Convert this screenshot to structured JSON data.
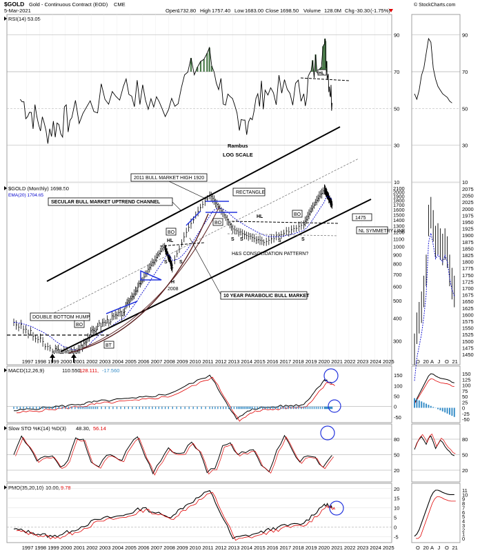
{
  "header": {
    "symbol": "$GOLD",
    "name": "Gold - Continuous Contract (EOD)",
    "exchange": "CME",
    "date": "5-Mar-2021",
    "open_label": "Open",
    "open": "1732.80",
    "high_label": "High",
    "high": "1757.40",
    "low_label": "Low",
    "low": "1683.00",
    "close_label": "Close",
    "close": "1698.50",
    "volume_label": "Volume",
    "volume": "128.0M",
    "chg_label": "Chg",
    "chg": "-30.30",
    "chg_pct": "(-1.75%)",
    "brand": "© StockCharts.com"
  },
  "colors": {
    "price": "#000000",
    "ema": "#0000cc",
    "signal": "#e00000",
    "histogram": "#3a8fc8",
    "rsi_fill": "#4a7a4a",
    "annotation_blue": "#2233dd",
    "guide_gray": "#aaaaaa"
  },
  "panels": {
    "rsi": {
      "legend": "RSI(14) 53.05",
      "ticks": [
        "90",
        "70",
        "50",
        "30",
        "10"
      ]
    },
    "price": {
      "legend_name": "$GOLD (Monthly) 1698.50",
      "legend_ema": "EMA(20) 1704.65",
      "ticks": [
        "2100",
        "2000",
        "1900",
        "1800",
        "1700",
        "1600",
        "1500",
        "1400",
        "1300",
        "1200",
        "1100",
        "1000",
        "900",
        "800",
        "700",
        "600",
        "500",
        "400",
        "300"
      ],
      "inset_ticks": [
        "2075",
        "2050",
        "2025",
        "2000",
        "1975",
        "1950",
        "1925",
        "1900",
        "1875",
        "1850",
        "1825",
        "1800",
        "1775",
        "1750",
        "1725",
        "1700",
        "1675",
        "1650",
        "1625",
        "1600",
        "1575",
        "1550",
        "1525",
        "1500",
        "1475",
        "1450"
      ]
    },
    "macd": {
      "legend_name": "MACD(12,26,9)",
      "legend_v1": "110.550,",
      "legend_v2": "128.111,",
      "legend_v3": "-17.560",
      "ticks": [
        "150",
        "100",
        "50",
        "0",
        "-50"
      ],
      "inset_ticks": [
        "150",
        "125",
        "100",
        "75",
        "50",
        "25",
        "0",
        "-25",
        "-50"
      ]
    },
    "sto": {
      "legend_name": "Slow STO %K(14) %D(3)",
      "legend_k": "48.30,",
      "legend_d": "56.14",
      "ticks": [
        "80",
        "50",
        "20"
      ]
    },
    "pmo": {
      "legend_name": "PMO(35,20,10)",
      "legend_v1": "10.00,",
      "legend_v2": "9.78",
      "ticks": [
        "20",
        "15",
        "10",
        "5",
        "0",
        "-5"
      ],
      "inset_ticks": [
        "11",
        "10",
        "9",
        "8",
        "7",
        "6",
        "5",
        "4",
        "3",
        "2",
        "1",
        "0"
      ]
    }
  },
  "x_axis": {
    "years": [
      "1997",
      "1998",
      "1999",
      "2000",
      "2001",
      "2002",
      "2003",
      "2004",
      "2005",
      "2006",
      "2007",
      "2008",
      "2009",
      "2010",
      "2011",
      "2012",
      "2013",
      "2014",
      "2015",
      "2016",
      "2017",
      "2018",
      "2019",
      "2020",
      "2021",
      "2022",
      "2023",
      "2024",
      "2025"
    ],
    "inset_months": [
      "O",
      "20",
      "A",
      "J",
      "O",
      "21"
    ]
  },
  "annotations": {
    "author": "Rambus",
    "scale": "LOG SCALE",
    "bull_high": "2011 BULL MARKET HIGH 1920",
    "secular_channel": "SECULAR BULL MARKET UPTREND CHANNEL",
    "rectangle": "RECTANGLE",
    "hl_a": "HL",
    "hl_b": "HL",
    "hl_c": "HL",
    "bo_a": "BO",
    "bo_b": "BO",
    "bo_c": "BO",
    "bo_d": "BO",
    "bt": "BT",
    "s_a": "S",
    "s_b": "S",
    "s_c": "S",
    "s_d": "S",
    "s_e": "S",
    "s_f": "S",
    "h_a": "H",
    "h_year": "2008",
    "level_1475": "1475",
    "nl_symmetry": "NL SYMMETRY LINE",
    "hs_pattern": "H&S CONSOLIDATION PATTERN?",
    "parabolic": "10 YEAR PARABOLIC BULL MARKET",
    "double_bottom": "DOUBLE BOTTOM HUMP"
  },
  "chart_data": [
    {
      "type": "line",
      "name": "RSI(14)",
      "x": [
        1997,
        1999,
        2001,
        2005,
        2008,
        2011.5,
        2014,
        2016,
        2019,
        2020.6,
        2021.2
      ],
      "values": [
        55,
        38,
        45,
        62,
        50,
        80,
        38,
        60,
        58,
        85,
        53.05
      ],
      "ylim": [
        10,
        100
      ]
    },
    {
      "type": "line",
      "name": "$GOLD (Monthly)",
      "log_scale": true,
      "x": [
        1996.5,
        1999.5,
        2001.3,
        2003,
        2005,
        2006.5,
        2008.2,
        2008.8,
        2011.7,
        2013.5,
        2015.9,
        2019,
        2020.6,
        2021.2
      ],
      "values": [
        380,
        260,
        255,
        360,
        430,
        650,
        1000,
        760,
        1920,
        1250,
        1050,
        1320,
        2075,
        1698.5
      ],
      "ylim": [
        250,
        2100
      ]
    },
    {
      "type": "line",
      "name": "EMA(20)",
      "value": 1704.65
    },
    {
      "type": "line",
      "name": "MACD(12,26,9)",
      "values_last": [
        110.55,
        128.111,
        -17.56
      ],
      "ylim": [
        -70,
        170
      ]
    },
    {
      "type": "line",
      "name": "Slow STO %K(14) %D(3)",
      "values_last": [
        48.3,
        56.14
      ],
      "ylim": [
        0,
        100
      ]
    },
    {
      "type": "line",
      "name": "PMO(35,20,10)",
      "values_last": [
        10.0,
        9.78
      ],
      "ylim": [
        -7,
        21
      ]
    }
  ]
}
